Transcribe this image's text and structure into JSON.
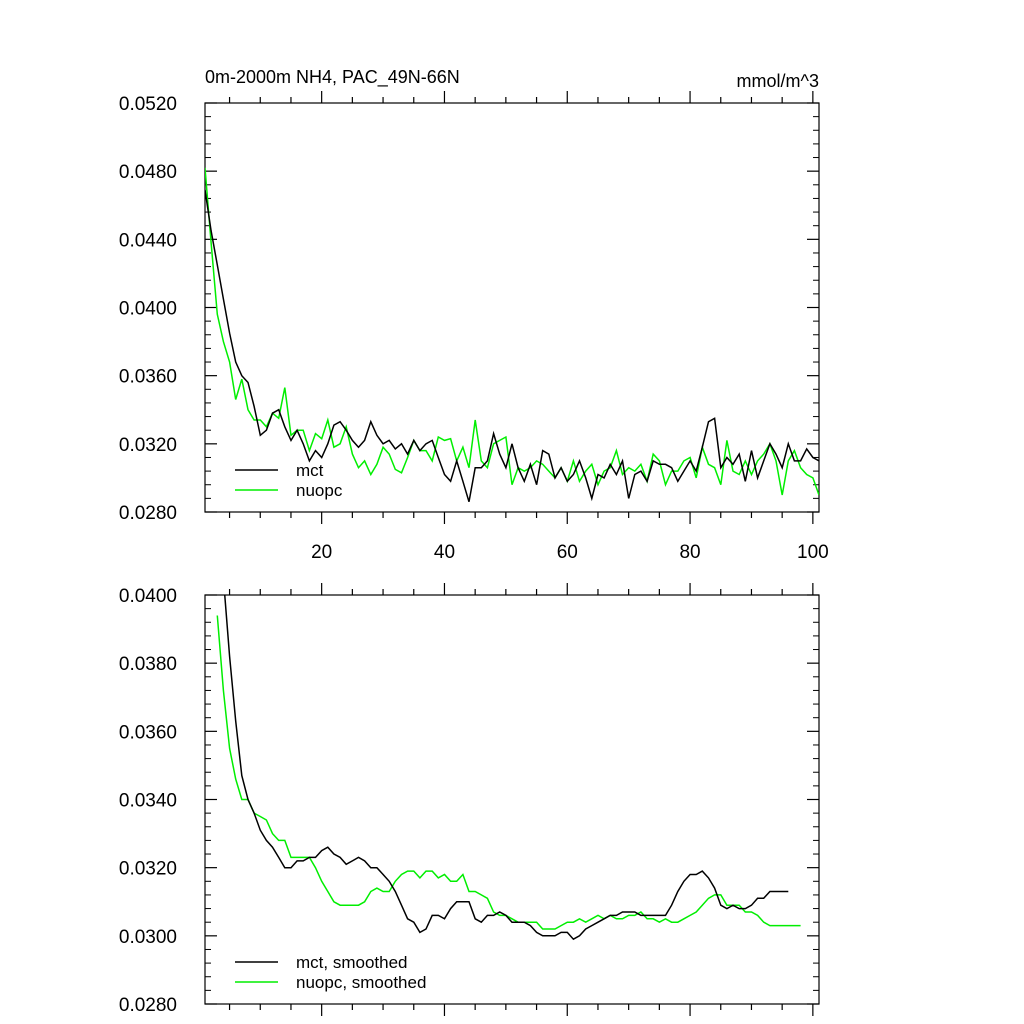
{
  "chart_data": [
    {
      "type": "line",
      "title": "0m-2000m NH4, PAC_49N-66N",
      "units": "mmol/m^3",
      "xlim": [
        1,
        101
      ],
      "ylim": [
        0.028,
        0.052
      ],
      "yticks": [
        "0.0280",
        "0.0320",
        "0.0360",
        "0.0400",
        "0.0440",
        "0.0480",
        "0.0520"
      ],
      "xticks": [
        "20",
        "40",
        "60",
        "80",
        "100"
      ],
      "legend_position": "bottom-left",
      "grid": false,
      "series": [
        {
          "name": "mct",
          "color": "#000000",
          "x_start": 1,
          "values": [
            0.0469,
            0.0445,
            0.0425,
            0.0405,
            0.0385,
            0.0368,
            0.036,
            0.0356,
            0.0342,
            0.0325,
            0.0328,
            0.0338,
            0.034,
            0.033,
            0.0322,
            0.0328,
            0.032,
            0.031,
            0.0316,
            0.0312,
            0.032,
            0.0331,
            0.0333,
            0.0328,
            0.0322,
            0.0318,
            0.0322,
            0.0333,
            0.0325,
            0.032,
            0.0322,
            0.0317,
            0.032,
            0.0314,
            0.0322,
            0.0316,
            0.032,
            0.0322,
            0.0312,
            0.0302,
            0.0298,
            0.031,
            0.0298,
            0.0286,
            0.0306,
            0.0306,
            0.031,
            0.0326,
            0.0314,
            0.0306,
            0.032,
            0.0306,
            0.0298,
            0.0308,
            0.0296,
            0.0316,
            0.0314,
            0.03,
            0.0306,
            0.0298,
            0.0302,
            0.031,
            0.03,
            0.0288,
            0.0302,
            0.03,
            0.0308,
            0.0302,
            0.031,
            0.0288,
            0.0302,
            0.0304,
            0.0298,
            0.031,
            0.0308,
            0.0308,
            0.0306,
            0.0298,
            0.0304,
            0.031,
            0.0304,
            0.0318,
            0.0333,
            0.0335,
            0.0306,
            0.0312,
            0.0308,
            0.0314,
            0.0298,
            0.0316,
            0.03,
            0.031,
            0.032,
            0.0314,
            0.0306,
            0.032,
            0.031,
            0.031,
            0.0317,
            0.0312,
            0.031
          ]
        },
        {
          "name": "nuopc",
          "color": "#00ee00",
          "x_start": 1,
          "values": [
            0.0482,
            0.0438,
            0.0396,
            0.038,
            0.0368,
            0.0346,
            0.0358,
            0.034,
            0.0334,
            0.0334,
            0.033,
            0.0338,
            0.0335,
            0.0353,
            0.0325,
            0.0328,
            0.0328,
            0.0316,
            0.0326,
            0.0323,
            0.0334,
            0.0318,
            0.032,
            0.033,
            0.0314,
            0.0306,
            0.031,
            0.0302,
            0.0308,
            0.0318,
            0.0314,
            0.0305,
            0.0303,
            0.0312,
            0.0322,
            0.0316,
            0.0316,
            0.031,
            0.0324,
            0.0322,
            0.0323,
            0.031,
            0.0318,
            0.0306,
            0.0334,
            0.031,
            0.0306,
            0.032,
            0.0322,
            0.0324,
            0.0296,
            0.0306,
            0.0304,
            0.0306,
            0.031,
            0.0308,
            0.0304,
            0.03,
            0.0306,
            0.0298,
            0.031,
            0.0298,
            0.0304,
            0.0308,
            0.0296,
            0.0304,
            0.0306,
            0.0316,
            0.0302,
            0.0306,
            0.0304,
            0.0308,
            0.0298,
            0.0314,
            0.031,
            0.0296,
            0.0304,
            0.0304,
            0.031,
            0.0312,
            0.03,
            0.0318,
            0.0308,
            0.0306,
            0.0296,
            0.0322,
            0.0304,
            0.0302,
            0.031,
            0.0302,
            0.031,
            0.0314,
            0.032,
            0.031,
            0.029,
            0.031,
            0.0316,
            0.0306,
            0.0302,
            0.03,
            0.029
          ]
        }
      ]
    },
    {
      "type": "line",
      "xlim": [
        1,
        101
      ],
      "ylim": [
        0.028,
        0.04
      ],
      "yticks": [
        "0.0280",
        "0.0300",
        "0.0320",
        "0.0340",
        "0.0360",
        "0.0380",
        "0.0400"
      ],
      "legend_position": "bottom-left",
      "grid": false,
      "series": [
        {
          "name": "mct, smoothed",
          "color": "#000000",
          "x_start": 4,
          "values": [
            0.0405,
            0.0382,
            0.0363,
            0.0347,
            0.034,
            0.0336,
            0.0331,
            0.0328,
            0.0326,
            0.0323,
            0.032,
            0.032,
            0.0322,
            0.0322,
            0.0323,
            0.0323,
            0.0325,
            0.0326,
            0.0324,
            0.0323,
            0.0321,
            0.0322,
            0.0323,
            0.0322,
            0.032,
            0.032,
            0.0318,
            0.0316,
            0.0313,
            0.0309,
            0.0305,
            0.0304,
            0.0301,
            0.0302,
            0.0306,
            0.0306,
            0.0305,
            0.0308,
            0.031,
            0.031,
            0.031,
            0.0305,
            0.0304,
            0.0306,
            0.0306,
            0.0307,
            0.0306,
            0.0304,
            0.0304,
            0.0304,
            0.0303,
            0.0301,
            0.03,
            0.03,
            0.03,
            0.0301,
            0.0301,
            0.0299,
            0.03,
            0.0302,
            0.0303,
            0.0304,
            0.0305,
            0.0306,
            0.0306,
            0.0307,
            0.0307,
            0.0307,
            0.0306,
            0.0306,
            0.0306,
            0.0306,
            0.0306,
            0.0309,
            0.0313,
            0.0316,
            0.0318,
            0.0318,
            0.0319,
            0.0317,
            0.0314,
            0.0309,
            0.0308,
            0.0309,
            0.0308,
            0.0308,
            0.0309,
            0.0311,
            0.0311,
            0.0313,
            0.0313,
            0.0313,
            0.0313
          ]
        },
        {
          "name": "nuopc, smoothed",
          "color": "#00ee00",
          "x_start": 3,
          "values": [
            0.0394,
            0.0372,
            0.0355,
            0.0346,
            0.034,
            0.034,
            0.0336,
            0.0335,
            0.0334,
            0.033,
            0.0328,
            0.0328,
            0.0323,
            0.0323,
            0.0323,
            0.0323,
            0.032,
            0.0316,
            0.0313,
            0.031,
            0.0309,
            0.0309,
            0.0309,
            0.0309,
            0.031,
            0.0313,
            0.0314,
            0.0313,
            0.0313,
            0.0316,
            0.0318,
            0.0319,
            0.0319,
            0.0317,
            0.0319,
            0.0319,
            0.0317,
            0.0318,
            0.0316,
            0.0316,
            0.0318,
            0.0313,
            0.0313,
            0.0312,
            0.0311,
            0.0307,
            0.0306,
            0.0306,
            0.0305,
            0.0304,
            0.0304,
            0.0304,
            0.0304,
            0.0302,
            0.0302,
            0.0302,
            0.0303,
            0.0304,
            0.0304,
            0.0305,
            0.0304,
            0.0305,
            0.0306,
            0.0305,
            0.0306,
            0.0305,
            0.0305,
            0.0306,
            0.0306,
            0.0307,
            0.0305,
            0.0305,
            0.0304,
            0.0305,
            0.0304,
            0.0304,
            0.0305,
            0.0306,
            0.0307,
            0.0309,
            0.0311,
            0.0312,
            0.0312,
            0.0309,
            0.0309,
            0.0309,
            0.0307,
            0.0307,
            0.0306,
            0.0304,
            0.0303,
            0.0303,
            0.0303,
            0.0303,
            0.0303,
            0.0303
          ]
        }
      ]
    }
  ]
}
